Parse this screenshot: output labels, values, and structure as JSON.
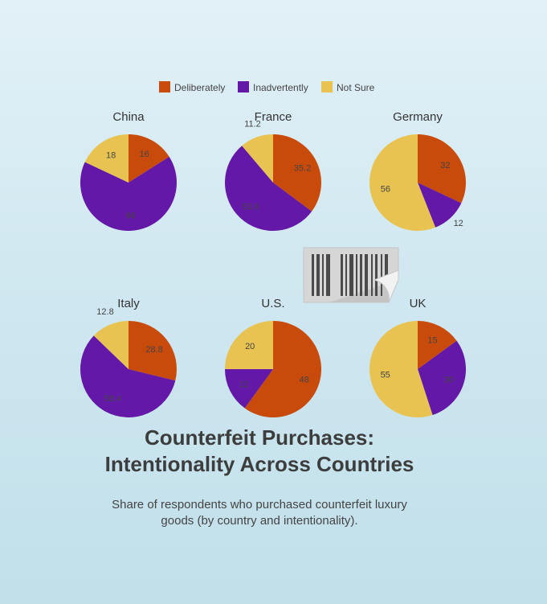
{
  "header": {
    "title_line1": "Counterfeit Purchases:",
    "title_line2": "Intentionality Across Countries",
    "subtitle_line1": "Share of respondents who purchased counterfeit luxury",
    "subtitle_line2": "goods (by country and intentionality)."
  },
  "colors": {
    "Deliberately": "#c94b0c",
    "Inadvertently": "#6318a7",
    "Not Sure": "#e8c352"
  },
  "chart_data": {
    "type": "pie",
    "legend": [
      "Deliberately",
      "Inadvertently",
      "Not Sure"
    ],
    "legend_position": "top-center",
    "charts": [
      {
        "title": "China",
        "values": [
          16,
          66,
          18
        ]
      },
      {
        "title": "France",
        "values": [
          35.2,
          53.6,
          11.2
        ]
      },
      {
        "title": "Germany",
        "values": [
          32,
          12,
          56
        ]
      },
      {
        "title": "Italy",
        "values": [
          28.8,
          58.4,
          12.8
        ]
      },
      {
        "title": "U.S.",
        "values": [
          48,
          12,
          20
        ]
      },
      {
        "title": "UK",
        "values": [
          15,
          30,
          55
        ]
      }
    ]
  },
  "decorations": {
    "barcode_icon": "barcode-sticker-icon"
  }
}
